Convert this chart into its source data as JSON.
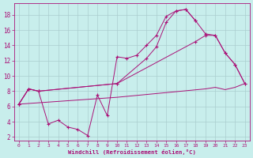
{
  "bg_color": "#c8eeec",
  "grid_color": "#aacece",
  "line_color": "#aa1177",
  "xlabel": "Windchill (Refroidissement éolien,°C)",
  "xlim": [
    -0.5,
    23.5
  ],
  "ylim": [
    1.5,
    19.5
  ],
  "xticks": [
    0,
    1,
    2,
    3,
    4,
    5,
    6,
    7,
    8,
    9,
    10,
    11,
    12,
    13,
    14,
    15,
    16,
    17,
    18,
    19,
    20,
    21,
    22,
    23
  ],
  "yticks": [
    2,
    4,
    6,
    8,
    10,
    12,
    14,
    16,
    18
  ],
  "series": [
    {
      "x": [
        0,
        1,
        2,
        3,
        4,
        5,
        6,
        7,
        8,
        9,
        10,
        11,
        12,
        13,
        14,
        15,
        16,
        17,
        18
      ],
      "y": [
        6.3,
        8.3,
        8.0,
        3.7,
        4.2,
        3.3,
        3.0,
        2.2,
        7.5,
        4.8,
        12.5,
        12.3,
        12.7,
        14.0,
        15.3,
        17.8,
        18.5,
        18.7,
        17.2
      ],
      "marker": true
    },
    {
      "x": [
        0,
        1,
        2,
        10,
        13,
        14,
        15,
        16,
        17,
        18,
        19,
        20,
        21,
        22,
        23
      ],
      "y": [
        6.3,
        8.3,
        8.0,
        9.0,
        12.3,
        13.8,
        17.0,
        18.5,
        18.7,
        17.2,
        15.5,
        15.3,
        13.0,
        11.5,
        9.0
      ],
      "marker": true
    },
    {
      "x": [
        0,
        1,
        2,
        10,
        18,
        19,
        20,
        21,
        22,
        23
      ],
      "y": [
        6.3,
        8.3,
        8.0,
        9.0,
        14.5,
        15.3,
        15.3,
        13.0,
        11.5,
        9.0
      ],
      "marker": true
    },
    {
      "x": [
        0,
        10,
        19,
        20,
        21,
        22,
        23
      ],
      "y": [
        6.3,
        7.2,
        8.3,
        8.5,
        8.2,
        8.5,
        9.0
      ],
      "marker": false
    }
  ]
}
